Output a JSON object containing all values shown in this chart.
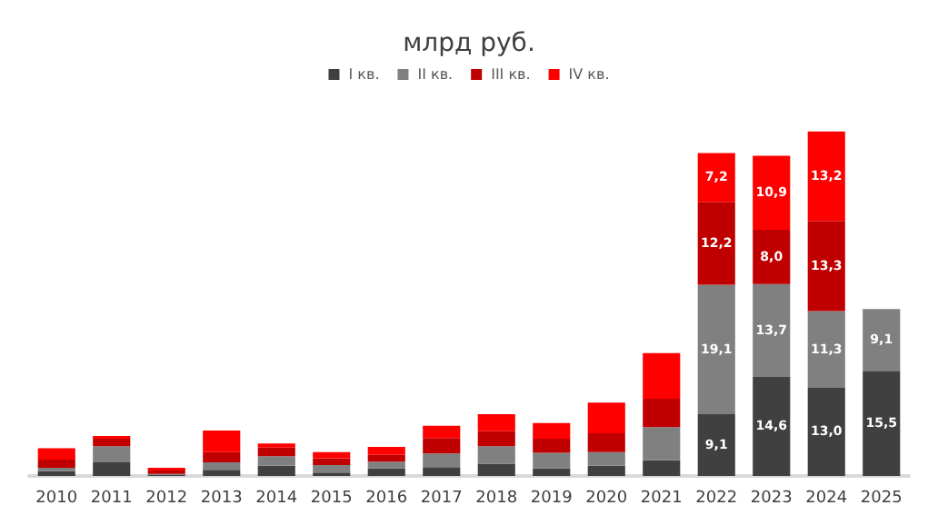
{
  "chart_data": {
    "type": "bar",
    "title": "млрд руб.",
    "stacked": true,
    "legend": "top",
    "grid": false,
    "tick_labels": "x",
    "categories": [
      "2010",
      "2011",
      "2012",
      "2013",
      "2014",
      "2015",
      "2016",
      "2017",
      "2018",
      "2019",
      "2020",
      "2021",
      "2022",
      "2023",
      "2024",
      "2025"
    ],
    "series": [
      {
        "name": "I кв.",
        "color": "#404040",
        "values": [
          0.7,
          2.0,
          0.2,
          0.9,
          1.5,
          0.5,
          1.1,
          1.3,
          1.8,
          1.1,
          1.5,
          2.3,
          9.1,
          14.6,
          13.0,
          15.5
        ],
        "value_labels": [
          null,
          null,
          null,
          null,
          null,
          null,
          null,
          null,
          null,
          null,
          null,
          null,
          "9,1",
          "14,6",
          "13,0",
          "15,5"
        ]
      },
      {
        "name": "II кв.",
        "color": "#808080",
        "values": [
          0.5,
          2.4,
          0.1,
          1.1,
          1.4,
          1.1,
          1.0,
          2.0,
          2.6,
          2.3,
          2.0,
          4.9,
          19.1,
          13.7,
          11.3,
          9.1
        ],
        "value_labels": [
          null,
          null,
          null,
          null,
          null,
          null,
          null,
          null,
          null,
          null,
          null,
          null,
          "19,1",
          "13,7",
          "11,3",
          "9,1"
        ]
      },
      {
        "name": "III кв.",
        "color": "#c00000",
        "values": [
          1.2,
          1.1,
          0.5,
          1.5,
          1.3,
          1.0,
          1.0,
          2.3,
          2.2,
          2.1,
          2.8,
          4.2,
          12.2,
          8.0,
          13.3,
          null
        ],
        "value_labels": [
          null,
          null,
          null,
          null,
          null,
          null,
          null,
          null,
          null,
          null,
          null,
          null,
          "12,2",
          "8,0",
          "13,3",
          null
        ]
      },
      {
        "name": "IV кв.",
        "color": "#ff0000",
        "values": [
          1.7,
          0.4,
          0.4,
          3.2,
          0.6,
          0.9,
          1.2,
          1.8,
          2.5,
          2.3,
          4.5,
          6.7,
          7.2,
          10.9,
          13.2,
          null
        ],
        "value_labels": [
          null,
          null,
          null,
          null,
          null,
          null,
          null,
          null,
          null,
          null,
          null,
          null,
          "7,2",
          "10,9",
          "13,2",
          null
        ]
      }
    ]
  }
}
